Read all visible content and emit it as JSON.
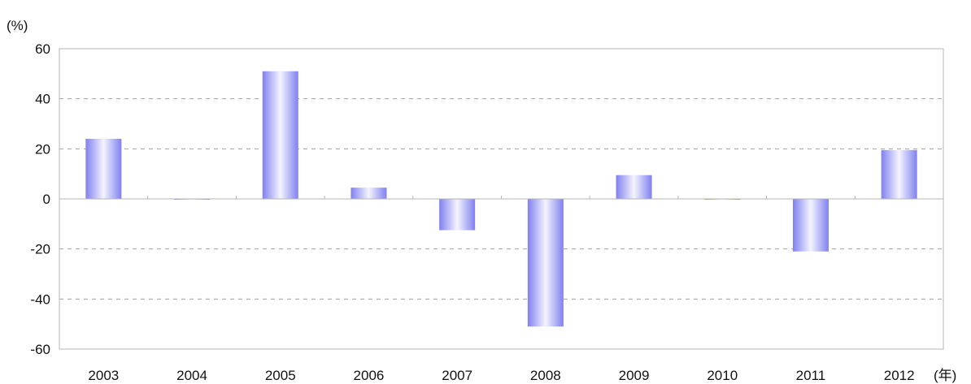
{
  "chart_data": {
    "type": "bar",
    "categories": [
      "2003",
      "2004",
      "2005",
      "2006",
      "2007",
      "2008",
      "2009",
      "2010",
      "2011",
      "2012"
    ],
    "series": [
      {
        "values": [
          24,
          0,
          51,
          4.5,
          -12.5,
          -51,
          9.5,
          0,
          -21,
          19.5
        ]
      }
    ],
    "ylabel": "(%)",
    "xlabel": "(年)",
    "ylim": [
      -60,
      60
    ],
    "yticks": [
      60,
      40,
      20,
      0,
      -20,
      -40,
      -60
    ],
    "grid": true,
    "legend": "none",
    "colors": {
      "bar_edge": "#8080f0",
      "bar_center": "#f4f4ff",
      "grid": "#a0a0a0",
      "axis": "#b4b4b4"
    }
  }
}
